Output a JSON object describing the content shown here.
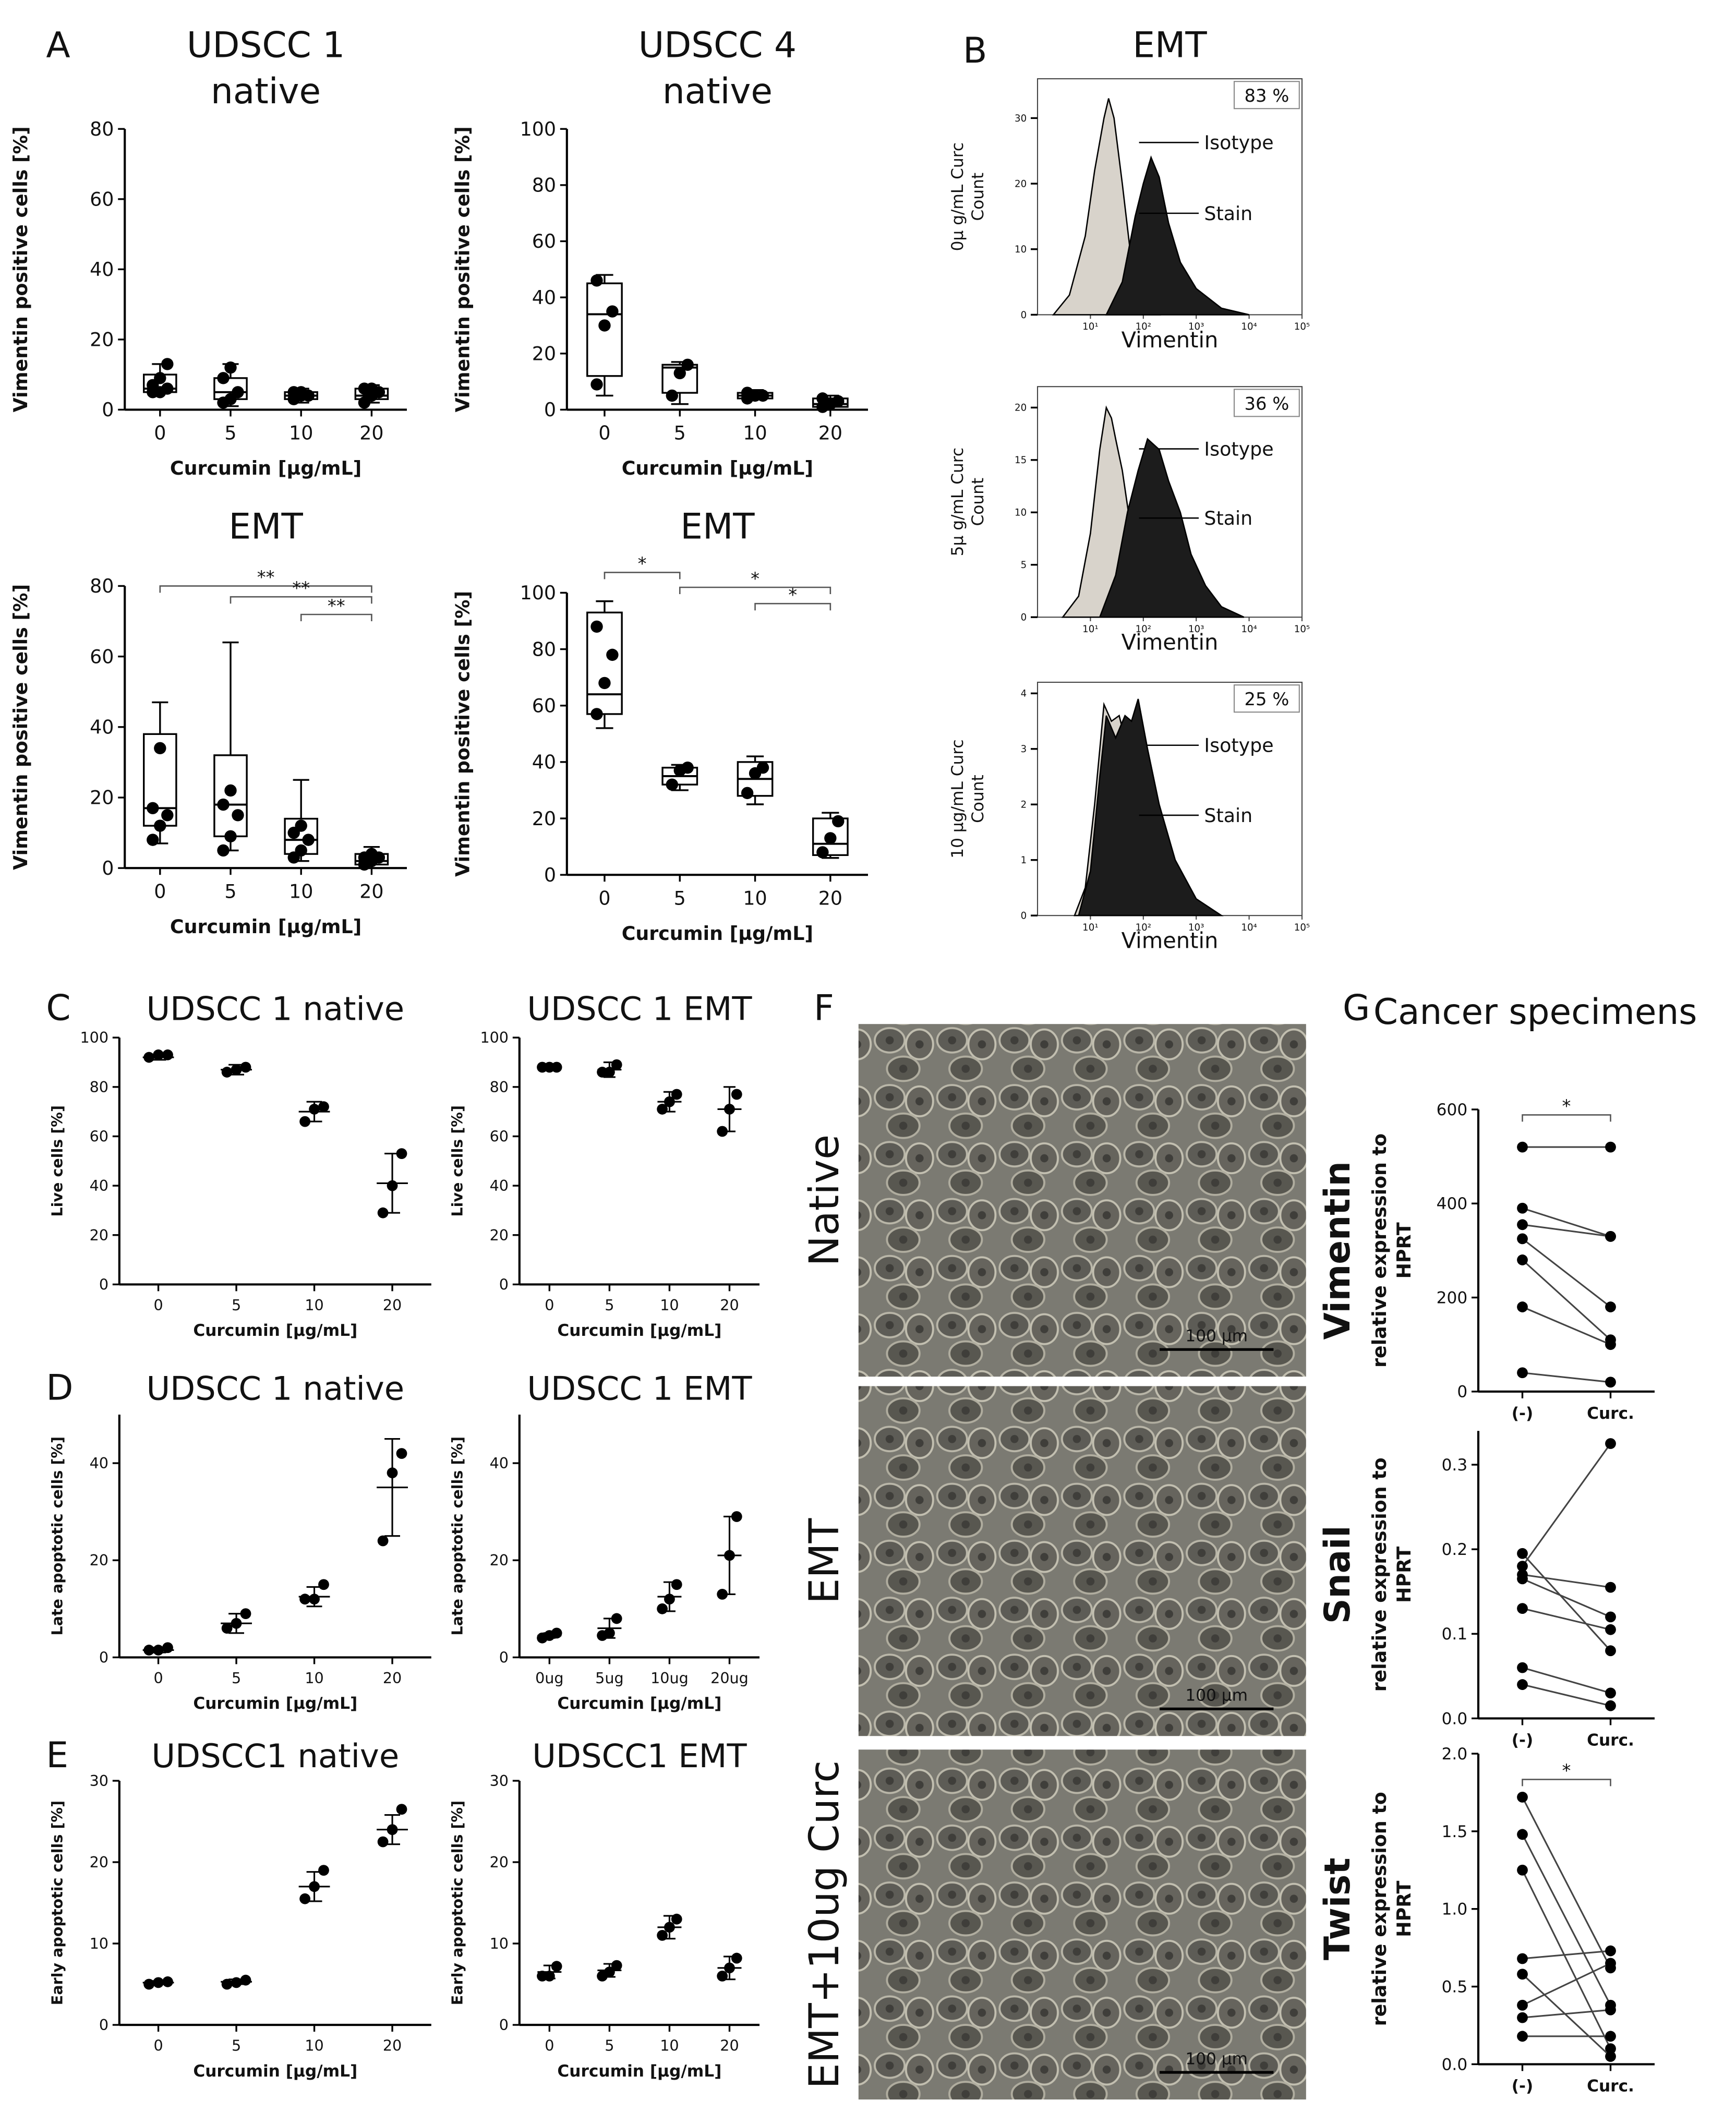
{
  "panel_labels": [
    "A",
    "B",
    "C",
    "D",
    "E",
    "F",
    "G"
  ],
  "images": [
    {
      "label": "Native",
      "scale_bar": "100 µm"
    },
    {
      "label": "EMT",
      "scale_bar": "100 µm"
    },
    {
      "label": "EMT+10ug Curc",
      "scale_bar": "100 µm"
    }
  ],
  "chart_data": [
    {
      "type": "box",
      "title": [
        "UDSCC 1",
        "native"
      ],
      "ylabel": "Vimentin positive cells [%]",
      "xlabel": "Curcumin [µg/mL]",
      "categories": [
        "0",
        "5",
        "10",
        "20"
      ],
      "ylim": [
        0,
        80
      ],
      "yticks": [
        0,
        20,
        40,
        60,
        80
      ],
      "boxes": [
        {
          "min": 5,
          "q1": 5,
          "median": 6,
          "q3": 10,
          "max": 13,
          "points": [
            5,
            5,
            6,
            7,
            9,
            13
          ]
        },
        {
          "min": 1,
          "q1": 3,
          "median": 5,
          "q3": 9,
          "max": 13,
          "points": [
            2,
            3,
            5,
            9,
            12
          ]
        },
        {
          "min": 2,
          "q1": 3,
          "median": 4,
          "q3": 5,
          "max": 6,
          "points": [
            3,
            4,
            4,
            5,
            5
          ]
        },
        {
          "min": 2,
          "q1": 3,
          "median": 4,
          "q3": 6,
          "max": 7,
          "points": [
            2,
            4,
            5,
            6,
            6
          ]
        }
      ]
    },
    {
      "type": "box",
      "title": [
        "UDSCC 4",
        "native"
      ],
      "ylabel": "Vimentin positive cells [%]",
      "xlabel": "Curcumin [µg/mL]",
      "categories": [
        "0",
        "5",
        "10",
        "20"
      ],
      "ylim": [
        0,
        100
      ],
      "yticks": [
        0,
        20,
        40,
        60,
        80,
        100
      ],
      "boxes": [
        {
          "min": 5,
          "q1": 12,
          "median": 34,
          "q3": 45,
          "max": 48,
          "points": [
            9,
            30,
            35,
            46
          ]
        },
        {
          "min": 2,
          "q1": 6,
          "median": 15,
          "q3": 16,
          "max": 17,
          "points": [
            5,
            13,
            16
          ]
        },
        {
          "min": 4,
          "q1": 4,
          "median": 5,
          "q3": 6,
          "max": 7,
          "points": [
            4,
            5,
            5,
            6
          ]
        },
        {
          "min": 0,
          "q1": 1,
          "median": 2,
          "q3": 4,
          "max": 5,
          "points": [
            1,
            2,
            3,
            4
          ]
        }
      ]
    },
    {
      "type": "box",
      "title": "EMT",
      "ylabel": "Vimentin positive cells [%]",
      "xlabel": "Curcumin [µg/mL]",
      "categories": [
        "0",
        "5",
        "10",
        "20"
      ],
      "ylim": [
        0,
        80
      ],
      "yticks": [
        0,
        20,
        40,
        60,
        80
      ],
      "boxes": [
        {
          "min": 7,
          "q1": 12,
          "median": 17,
          "q3": 38,
          "max": 47,
          "points": [
            8,
            12,
            15,
            17,
            34
          ]
        },
        {
          "min": 5,
          "q1": 9,
          "median": 18,
          "q3": 32,
          "max": 64,
          "points": [
            5,
            9,
            15,
            18,
            22
          ]
        },
        {
          "min": 2,
          "q1": 4,
          "median": 8,
          "q3": 14,
          "max": 25,
          "points": [
            3,
            5,
            8,
            10,
            12
          ]
        },
        {
          "min": 0,
          "q1": 1,
          "median": 2,
          "q3": 4,
          "max": 6,
          "points": [
            1,
            2,
            3,
            3,
            4
          ]
        }
      ],
      "annotations": [
        {
          "label": "**",
          "between": [
            "0",
            "20"
          ]
        },
        {
          "label": "**",
          "between": [
            "5",
            "20"
          ]
        },
        {
          "label": "**",
          "between": [
            "10",
            "20"
          ]
        }
      ]
    },
    {
      "type": "box",
      "title": "EMT",
      "ylabel": "Vimentin positive cells [%]",
      "xlabel": "Curcumin [µg/mL]",
      "categories": [
        "0",
        "5",
        "10",
        "20"
      ],
      "ylim": [
        0,
        100
      ],
      "yticks": [
        0,
        20,
        40,
        60,
        80,
        100
      ],
      "boxes": [
        {
          "min": 52,
          "q1": 57,
          "median": 64,
          "q3": 93,
          "max": 97,
          "points": [
            57,
            68,
            78,
            88
          ]
        },
        {
          "min": 30,
          "q1": 32,
          "median": 35,
          "q3": 38,
          "max": 39,
          "points": [
            32,
            37,
            38
          ]
        },
        {
          "min": 25,
          "q1": 28,
          "median": 34,
          "q3": 40,
          "max": 42,
          "points": [
            29,
            36,
            38
          ]
        },
        {
          "min": 6,
          "q1": 7,
          "median": 11,
          "q3": 20,
          "max": 22,
          "points": [
            8,
            13,
            19
          ]
        }
      ],
      "annotations": [
        {
          "label": "*",
          "between": [
            "0",
            "5"
          ]
        },
        {
          "label": "*",
          "between": [
            "5",
            "20"
          ]
        },
        {
          "label": "*",
          "between": [
            "10",
            "20"
          ]
        }
      ]
    },
    {
      "type": "area",
      "title": "EMT",
      "xscale": "log",
      "percent_label": "83 %",
      "ylabel": [
        "0µ g/mL Curc",
        "Count"
      ],
      "xlabel": "Vimentin",
      "xlim": [
        1,
        100000
      ],
      "xticks": [
        {
          "value": 10,
          "label": "10¹"
        },
        {
          "value": 100,
          "label": "10²"
        },
        {
          "value": 1000,
          "label": "10³"
        },
        {
          "value": 10000,
          "label": "10⁴"
        },
        {
          "value": 100000,
          "label": "10⁵"
        }
      ],
      "ylim": [
        0,
        36
      ],
      "yticks": [
        0,
        10,
        20,
        30
      ],
      "series": [
        {
          "name": "Isotype",
          "color": "#d8d3cb",
          "x": [
            2,
            4,
            8,
            12,
            18,
            22,
            28,
            40,
            60,
            100,
            200
          ],
          "y": [
            0,
            3,
            12,
            22,
            30,
            33,
            30,
            20,
            8,
            2,
            0
          ]
        },
        {
          "name": "Stain",
          "color": "#1c1c1c",
          "x": [
            20,
            40,
            70,
            100,
            140,
            200,
            300,
            500,
            1000,
            3000,
            10000
          ],
          "y": [
            0,
            5,
            15,
            20,
            24,
            21,
            14,
            8,
            4,
            1,
            0
          ]
        }
      ]
    },
    {
      "type": "area",
      "xscale": "log",
      "percent_label": "36 %",
      "ylabel": [
        "5µ g/mL Curc",
        "Count"
      ],
      "xlabel": "Vimentin",
      "xlim": [
        1,
        100000
      ],
      "xticks": [
        {
          "value": 10,
          "label": "10¹"
        },
        {
          "value": 100,
          "label": "10²"
        },
        {
          "value": 1000,
          "label": "10³"
        },
        {
          "value": 10000,
          "label": "10⁴"
        },
        {
          "value": 100000,
          "label": "10⁵"
        }
      ],
      "ylim": [
        0,
        22
      ],
      "yticks": [
        0,
        5,
        10,
        15,
        20
      ],
      "series": [
        {
          "name": "Isotype",
          "color": "#d8d3cb",
          "x": [
            3,
            6,
            10,
            15,
            20,
            25,
            30,
            40,
            60,
            100,
            200
          ],
          "y": [
            0,
            2,
            8,
            16,
            20,
            19,
            17,
            14,
            8,
            3,
            0
          ]
        },
        {
          "name": "Stain",
          "color": "#1c1c1c",
          "x": [
            15,
            30,
            50,
            80,
            120,
            200,
            300,
            500,
            800,
            1500,
            3000,
            8000
          ],
          "y": [
            0,
            4,
            10,
            14,
            17,
            16,
            13,
            10,
            6,
            3,
            1,
            0
          ]
        }
      ]
    },
    {
      "type": "area",
      "xscale": "log",
      "percent_label": "25 %",
      "ylabel": [
        "10 µg/mL Curc",
        "Count"
      ],
      "xlabel": "Vimentin",
      "xlim": [
        1,
        100000
      ],
      "xticks": [
        {
          "value": 10,
          "label": "10¹"
        },
        {
          "value": 100,
          "label": "10²"
        },
        {
          "value": 1000,
          "label": "10³"
        },
        {
          "value": 10000,
          "label": "10⁴"
        },
        {
          "value": 100000,
          "label": "10⁵"
        }
      ],
      "ylim": [
        0,
        4.2
      ],
      "yticks": [
        0,
        1,
        2,
        3,
        4
      ],
      "series": [
        {
          "name": "Isotype",
          "color": "#d8d3cb",
          "x": [
            5,
            8,
            12,
            18,
            25,
            35,
            50,
            70,
            100,
            200
          ],
          "y": [
            0,
            0.5,
            2,
            3.8,
            3.5,
            3.6,
            3,
            2.5,
            1.5,
            0
          ]
        },
        {
          "name": "Stain",
          "color": "#1c1c1c",
          "x": [
            6,
            10,
            15,
            20,
            30,
            45,
            60,
            80,
            120,
            200,
            400,
            1000,
            3000
          ],
          "y": [
            0,
            0.8,
            2.5,
            3.6,
            3.2,
            3.6,
            3.5,
            3.9,
            3,
            2,
            1,
            0.3,
            0
          ]
        }
      ]
    },
    {
      "type": "dot",
      "title": "UDSCC 1 native",
      "ylabel": "Live cells [%]",
      "xlabel": "Curcumin [µg/mL]",
      "categories": [
        "0",
        "5",
        "10",
        "20"
      ],
      "ylim": [
        0,
        100
      ],
      "yticks": [
        0,
        20,
        40,
        60,
        80,
        100
      ],
      "points": [
        [
          92,
          93,
          93
        ],
        [
          86,
          87,
          88
        ],
        [
          66,
          71,
          72
        ],
        [
          29,
          40,
          53
        ]
      ],
      "means": [
        92,
        87,
        70,
        41
      ],
      "sds": [
        1,
        2,
        4,
        12
      ]
    },
    {
      "type": "dot",
      "title": "UDSCC 1 EMT",
      "ylabel": "Live cells [%]",
      "xlabel": "Curcumin [µg/mL]",
      "categories": [
        "0",
        "5",
        "10",
        "20"
      ],
      "ylim": [
        0,
        100
      ],
      "yticks": [
        0,
        20,
        40,
        60,
        80,
        100
      ],
      "points": [
        [
          88,
          88,
          88
        ],
        [
          86,
          86,
          89
        ],
        [
          71,
          74,
          77
        ],
        [
          62,
          71,
          77
        ]
      ],
      "means": [
        88,
        87,
        74,
        71
      ],
      "sds": [
        0.5,
        3,
        4,
        9
      ]
    },
    {
      "type": "dot",
      "title": "UDSCC 1 native",
      "ylabel": "Late apoptotic cells [%]",
      "xlabel": "Curcumin [µg/mL]",
      "categories": [
        "0",
        "5",
        "10",
        "20"
      ],
      "ylim": [
        0,
        50
      ],
      "yticks": [
        0,
        20,
        40
      ],
      "points": [
        [
          1.5,
          1.5,
          2
        ],
        [
          6,
          7,
          9
        ],
        [
          12,
          12,
          15
        ],
        [
          24,
          38,
          42
        ]
      ],
      "means": [
        1.5,
        7,
        12.5,
        35
      ],
      "sds": [
        0.5,
        2,
        2,
        10
      ]
    },
    {
      "type": "dot",
      "title": "UDSCC 1 EMT",
      "ylabel": "Late apoptotic cells [%]",
      "xlabel": "Curcumin [µg/mL]",
      "categories": [
        "0ug",
        "5ug",
        "10ug",
        "20ug"
      ],
      "ylim": [
        0,
        50
      ],
      "yticks": [
        0,
        20,
        40
      ],
      "points": [
        [
          4,
          4.5,
          5
        ],
        [
          4.5,
          5,
          8
        ],
        [
          10,
          12,
          15
        ],
        [
          13,
          21,
          29
        ]
      ],
      "means": [
        4.5,
        6,
        12.5,
        21
      ],
      "sds": [
        0.5,
        2,
        3,
        8
      ]
    },
    {
      "type": "dot",
      "title": "UDSCC1 native",
      "ylabel": "Early apoptotic cells [%]",
      "xlabel": "Curcumin [µg/mL]",
      "categories": [
        "0",
        "5",
        "10",
        "20"
      ],
      "ylim": [
        0,
        30
      ],
      "yticks": [
        0,
        10,
        20,
        30
      ],
      "points": [
        [
          5,
          5.2,
          5.3
        ],
        [
          5,
          5.2,
          5.5
        ],
        [
          15.5,
          17,
          19
        ],
        [
          22.5,
          24,
          26.5
        ]
      ],
      "means": [
        5.2,
        5.3,
        17,
        24
      ],
      "sds": [
        0.2,
        0.3,
        1.8,
        1.8
      ]
    },
    {
      "type": "dot",
      "title": "UDSCC1 EMT",
      "ylabel": "Early apoptotic cells [%]",
      "xlabel": "Curcumin [µg/mL]",
      "categories": [
        "0",
        "5",
        "10",
        "20"
      ],
      "ylim": [
        0,
        30
      ],
      "yticks": [
        0,
        10,
        20,
        30
      ],
      "points": [
        [
          6,
          6,
          7.2
        ],
        [
          6,
          6.5,
          7.3
        ],
        [
          11,
          12,
          13
        ],
        [
          6,
          7,
          8.2
        ]
      ],
      "means": [
        6.5,
        6.7,
        12,
        7
      ],
      "sds": [
        0.8,
        0.8,
        1.4,
        1.4
      ]
    },
    {
      "type": "paired",
      "title": "Cancer specimens",
      "ylabel": [
        "Vimentin",
        "relative expression to",
        "HPRT"
      ],
      "categories": [
        "(-)",
        "Curc."
      ],
      "ylim": [
        0,
        600
      ],
      "yticks": [
        0,
        200,
        400,
        600
      ],
      "pairs": [
        [
          520,
          520
        ],
        [
          390,
          330
        ],
        [
          355,
          330
        ],
        [
          325,
          180
        ],
        [
          280,
          110
        ],
        [
          180,
          100
        ],
        [
          40,
          20
        ]
      ],
      "annotations": [
        {
          "label": "*",
          "between": [
            "(-)",
            "Curc."
          ]
        }
      ]
    },
    {
      "type": "paired",
      "ylabel": [
        "Snail",
        "relative expression to",
        "HPRT"
      ],
      "categories": [
        "(-)",
        "Curc."
      ],
      "ylim": [
        0,
        0.34
      ],
      "yticks": [
        {
          "value": 0,
          "label": "0.0"
        },
        0.1,
        0.2,
        0.3
      ],
      "pairs": [
        [
          0.195,
          0.08
        ],
        [
          0.18,
          0.325
        ],
        [
          0.17,
          0.155
        ],
        [
          0.165,
          0.12
        ],
        [
          0.13,
          0.105
        ],
        [
          0.06,
          0.03
        ],
        [
          0.04,
          0.015
        ]
      ]
    },
    {
      "type": "paired",
      "ylabel": [
        "Twist",
        "relative expression to",
        "HPRT"
      ],
      "categories": [
        "(-)",
        "Curc."
      ],
      "ylim": [
        0,
        2
      ],
      "yticks": [
        {
          "value": 0,
          "label": "0.0"
        },
        0.5,
        {
          "value": 1,
          "label": "1.0"
        },
        1.5,
        {
          "value": 2,
          "label": "2.0"
        }
      ],
      "pairs": [
        [
          1.72,
          0.62
        ],
        [
          1.48,
          0.38
        ],
        [
          1.25,
          0.1
        ],
        [
          0.68,
          0.73
        ],
        [
          0.58,
          0.05
        ],
        [
          0.38,
          0.65
        ],
        [
          0.3,
          0.35
        ],
        [
          0.18,
          0.18
        ]
      ],
      "annotations": [
        {
          "label": "*",
          "between": [
            "(-)",
            "Curc."
          ]
        }
      ]
    }
  ]
}
